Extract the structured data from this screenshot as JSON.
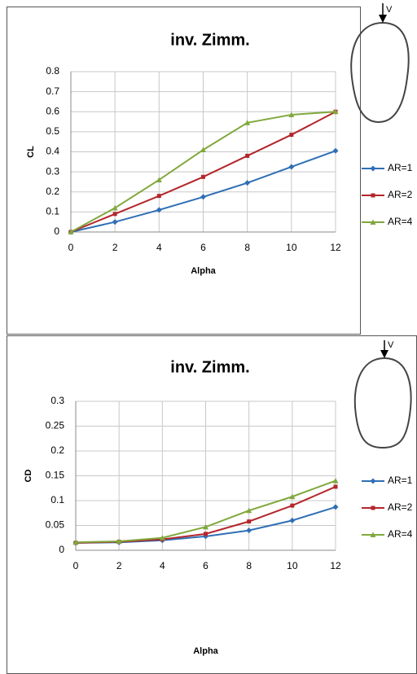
{
  "chart_data": [
    {
      "type": "line",
      "title": "inv. Zimm.",
      "xlabel": "Alpha",
      "ylabel": "CL",
      "annotation": "V",
      "x": [
        0,
        2,
        4,
        6,
        8,
        10,
        12
      ],
      "series": [
        {
          "name": "AR=1",
          "color": "#2f6fb5",
          "marker": "diamond",
          "values": [
            0,
            0.05,
            0.11,
            0.175,
            0.245,
            0.325,
            0.405
          ]
        },
        {
          "name": "AR=2",
          "color": "#b3262b",
          "marker": "square",
          "values": [
            0,
            0.09,
            0.18,
            0.275,
            0.38,
            0.485,
            0.6
          ]
        },
        {
          "name": "AR=4",
          "color": "#80a83c",
          "marker": "triangle",
          "values": [
            0,
            0.12,
            0.26,
            0.41,
            0.545,
            0.585,
            0.6
          ]
        }
      ],
      "xlim": [
        0,
        12
      ],
      "xticks": [
        0,
        2,
        4,
        6,
        8,
        10,
        12
      ],
      "ylim": [
        0,
        0.8
      ],
      "yticks": [
        0,
        0.1,
        0.2,
        0.3,
        0.4,
        0.5,
        0.6,
        0.7,
        0.8
      ],
      "grid": true,
      "legend": "right"
    },
    {
      "type": "line",
      "title": "inv. Zimm.",
      "xlabel": "Alpha",
      "ylabel": "CD",
      "annotation": "V",
      "x": [
        0,
        2,
        4,
        6,
        8,
        10,
        12
      ],
      "series": [
        {
          "name": "AR=1",
          "color": "#2f6fb5",
          "marker": "diamond",
          "values": [
            0.015,
            0.016,
            0.02,
            0.028,
            0.04,
            0.06,
            0.087
          ]
        },
        {
          "name": "AR=2",
          "color": "#b3262b",
          "marker": "square",
          "values": [
            0.015,
            0.017,
            0.022,
            0.033,
            0.058,
            0.09,
            0.128
          ]
        },
        {
          "name": "AR=4",
          "color": "#80a83c",
          "marker": "triangle",
          "values": [
            0.016,
            0.018,
            0.025,
            0.047,
            0.08,
            0.108,
            0.14
          ]
        }
      ],
      "xlim": [
        0,
        12
      ],
      "xticks": [
        0,
        2,
        4,
        6,
        8,
        10,
        12
      ],
      "ylim": [
        0,
        0.3
      ],
      "yticks": [
        0,
        0.05,
        0.1,
        0.15,
        0.2,
        0.25,
        0.3
      ],
      "grid": true,
      "legend": "right"
    }
  ]
}
